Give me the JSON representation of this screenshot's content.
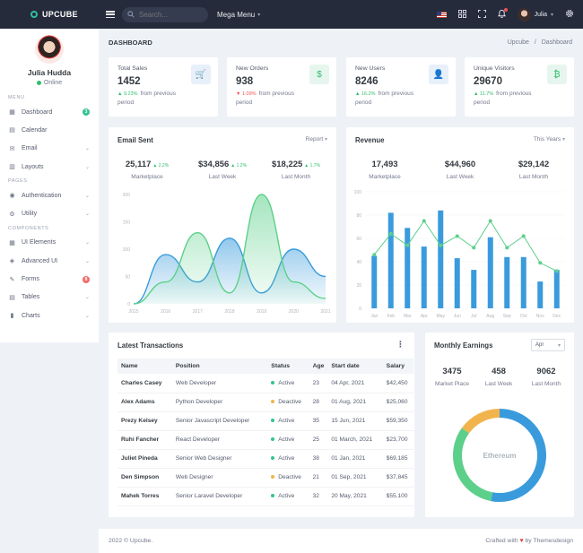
{
  "brand": {
    "name": "UPCUBE"
  },
  "topbar": {
    "search_placeholder": "Search...",
    "mega_menu": "Mega Menu",
    "user_name": "Julia"
  },
  "profile": {
    "name": "Julia Hudda",
    "status": "Online"
  },
  "sidebar": {
    "sections": {
      "menu": "Menu",
      "pages": "Pages",
      "components": "Components"
    },
    "menu_items": [
      {
        "label": "Dashboard",
        "icon": "dashboard-icon",
        "badge": "3",
        "badge_color": "#34c38f"
      },
      {
        "label": "Calendar",
        "icon": "calendar-icon"
      },
      {
        "label": "Email",
        "icon": "mail-icon"
      },
      {
        "label": "Layouts",
        "icon": "layout-icon"
      }
    ],
    "pages_items": [
      {
        "label": "Authentication",
        "icon": "account-icon"
      },
      {
        "label": "Utility",
        "icon": "settings-icon"
      }
    ],
    "component_items": [
      {
        "label": "UI Elements",
        "icon": "grid-icon"
      },
      {
        "label": "Advanced UI",
        "icon": "layers-icon"
      },
      {
        "label": "Forms",
        "icon": "form-icon",
        "badge": "8",
        "badge_color": "#f46a6a"
      },
      {
        "label": "Tables",
        "icon": "table-icon"
      },
      {
        "label": "Charts",
        "icon": "chart-icon"
      }
    ]
  },
  "page": {
    "title": "DASHBOARD",
    "breadcrumb": [
      "Upcube",
      "/",
      "Dashboard"
    ]
  },
  "stats": [
    {
      "title": "Total Sales",
      "value": "1452",
      "change": "9.23%",
      "direction": "up",
      "note": "from previous period",
      "icon": "cart-icon",
      "glyph": "🛒"
    },
    {
      "title": "New Orders",
      "value": "938",
      "change": "1.09%",
      "direction": "down",
      "note": "from previous period",
      "icon": "dollar-icon",
      "glyph": "$"
    },
    {
      "title": "New Users",
      "value": "8246",
      "change": "16.2%",
      "direction": "up",
      "note": "from previous period",
      "icon": "user-icon",
      "glyph": "👤"
    },
    {
      "title": "Unique Visitors",
      "value": "29670",
      "change": "11.7%",
      "direction": "up",
      "note": "from previous period",
      "icon": "bitcoin-icon",
      "glyph": "₿"
    }
  ],
  "email_sent": {
    "title": "Email Sent",
    "dropdown": "Report",
    "kpis": [
      {
        "value": "25,117",
        "change": "2.2%",
        "label": "Marketplace"
      },
      {
        "value": "$34,856",
        "change": "1.2%",
        "label": "Last Week"
      },
      {
        "value": "$18,225",
        "change": "1.7%",
        "label": "Last Month"
      }
    ]
  },
  "revenue": {
    "title": "Revenue",
    "dropdown": "This Years",
    "kpis": [
      {
        "value": "17,493",
        "label": "Marketplace"
      },
      {
        "value": "$44,960",
        "label": "Last Week"
      },
      {
        "value": "$29,142",
        "label": "Last Month"
      }
    ]
  },
  "chart_data": [
    {
      "type": "area",
      "x": [
        "2015",
        "2016",
        "2017",
        "2018",
        "2019",
        "2020",
        "2021"
      ],
      "ylim": [
        0,
        200
      ],
      "yticks": [
        "0",
        "50",
        "100",
        "150",
        "200"
      ],
      "series": [
        {
          "color": "#3a9bdc",
          "values": [
            0,
            90,
            40,
            120,
            20,
            100,
            50
          ]
        },
        {
          "color": "#5cd08a",
          "values": [
            0,
            40,
            130,
            20,
            200,
            40,
            10
          ]
        }
      ]
    },
    {
      "type": "bar",
      "categories": [
        "Jan",
        "Feb",
        "Mar",
        "Apr",
        "May",
        "Jun",
        "Jul",
        "Aug",
        "Sep",
        "Oct",
        "Nov",
        "Dec"
      ],
      "ylim": [
        0,
        100
      ],
      "yticks": [
        "0",
        "20",
        "40",
        "60",
        "80",
        "100"
      ],
      "series": [
        {
          "type": "bar",
          "color": "#3a9bdc",
          "values": [
            45,
            82,
            69,
            53,
            84,
            43,
            33,
            61,
            44,
            44,
            23,
            33
          ]
        },
        {
          "type": "line",
          "color": "#5cd08a",
          "values": [
            46,
            64,
            54,
            75,
            54,
            62,
            52,
            75,
            52,
            62,
            39,
            32
          ]
        }
      ]
    },
    {
      "type": "pie",
      "title": "Monthly Earnings",
      "dropdown": "Apr",
      "kpis": [
        {
          "value": "3475",
          "label": "Market Place"
        },
        {
          "value": "458",
          "label": "Last Week"
        },
        {
          "value": "9062",
          "label": "Last Month"
        }
      ],
      "center_label": "Ethereum",
      "slices": [
        {
          "value": 53,
          "color": "#3a9bdc"
        },
        {
          "value": 32,
          "color": "#5cd08a"
        },
        {
          "value": 15,
          "color": "#f1b44c"
        }
      ]
    }
  ],
  "transactions": {
    "title": "Latest Transactions",
    "columns": [
      "Name",
      "Position",
      "Status",
      "Age",
      "Start date",
      "Salary"
    ],
    "rows": [
      {
        "name": "Charles Casey",
        "position": "Web Developer",
        "status": "Active",
        "status_color": "#34c38f",
        "age": "23",
        "start": "04 Apr, 2021",
        "salary": "$42,450"
      },
      {
        "name": "Alex Adams",
        "position": "Python Developer",
        "status": "Deactive",
        "status_color": "#f1b44c",
        "age": "28",
        "start": "01 Aug, 2021",
        "salary": "$25,060"
      },
      {
        "name": "Prezy Kelsey",
        "position": "Senior Javascript Developer",
        "status": "Active",
        "status_color": "#34c38f",
        "age": "35",
        "start": "15 Jun, 2021",
        "salary": "$59,350"
      },
      {
        "name": "Ruhi Fancher",
        "position": "React Developer",
        "status": "Active",
        "status_color": "#34c38f",
        "age": "25",
        "start": "01 March, 2021",
        "salary": "$23,700"
      },
      {
        "name": "Juliet Pineda",
        "position": "Senior Web Designer",
        "status": "Active",
        "status_color": "#34c38f",
        "age": "38",
        "start": "01 Jan, 2021",
        "salary": "$69,185"
      },
      {
        "name": "Den Simpson",
        "position": "Web Designer",
        "status": "Deactive",
        "status_color": "#f1b44c",
        "age": "21",
        "start": "01 Sep, 2021",
        "salary": "$37,845"
      },
      {
        "name": "Mahek Torres",
        "position": "Senior Laravel Developer",
        "status": "Active",
        "status_color": "#34c38f",
        "age": "32",
        "start": "20 May, 2021",
        "salary": "$55,100"
      }
    ]
  },
  "footer": {
    "copyright": "2022 © Upcube.",
    "crafted": "Crafted with",
    "by": "by Themesdesign"
  }
}
